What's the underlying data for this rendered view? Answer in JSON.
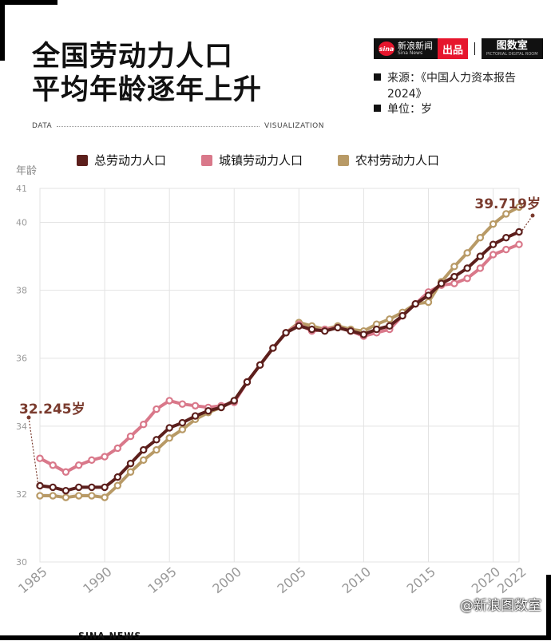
{
  "header": {
    "title_line1": "全国劳动力人口",
    "title_line2": "平均年龄逐年上升",
    "brand_name": "新浪新闻",
    "brand_sub": "Sina News",
    "brand_badge": "出品",
    "brand_tsx": "图数室",
    "brand_tsx_sub": "PICTORIAL DIGITAL ROOM",
    "sina_logo_text": "sina",
    "source_line1": "来源：《中国人力资本报告",
    "source_line2": "2024》",
    "unit": "单位：岁",
    "data_label": "DATA",
    "viz_label": "VISUALIZATION"
  },
  "footer": {
    "left": "SINA NEWS",
    "watermark": "@新浪图数室"
  },
  "colors": {
    "total": "#5c1f1c",
    "urban": "#d9788a",
    "rural": "#b89a66",
    "callout": "#7a3b2e",
    "grid": "#e3e3e3"
  },
  "chart_data": {
    "type": "line",
    "ylabel": "年龄",
    "ylim": [
      30,
      41
    ],
    "yticks": [
      30,
      32,
      34,
      36,
      38,
      40,
      41
    ],
    "x": [
      1985,
      1986,
      1987,
      1988,
      1989,
      1990,
      1991,
      1992,
      1993,
      1994,
      1995,
      1996,
      1997,
      1998,
      1999,
      2000,
      2001,
      2002,
      2003,
      2004,
      2005,
      2006,
      2007,
      2008,
      2009,
      2010,
      2011,
      2012,
      2013,
      2014,
      2015,
      2016,
      2017,
      2018,
      2019,
      2020,
      2021,
      2022
    ],
    "xticks": [
      1985,
      1990,
      1995,
      2000,
      2005,
      2010,
      2015,
      2020,
      2022
    ],
    "series": [
      {
        "name": "总劳动力人口",
        "key": "total",
        "values": [
          32.245,
          32.2,
          32.1,
          32.2,
          32.2,
          32.2,
          32.5,
          32.9,
          33.3,
          33.6,
          33.95,
          34.1,
          34.3,
          34.45,
          34.55,
          34.75,
          35.3,
          35.8,
          36.3,
          36.75,
          36.95,
          36.85,
          36.8,
          36.9,
          36.8,
          36.7,
          36.85,
          36.95,
          37.25,
          37.6,
          37.85,
          38.2,
          38.4,
          38.65,
          39.0,
          39.35,
          39.55,
          39.719
        ]
      },
      {
        "name": "城镇劳动力人口",
        "key": "urban",
        "values": [
          33.05,
          32.85,
          32.65,
          32.85,
          33.0,
          33.1,
          33.35,
          33.7,
          34.05,
          34.5,
          34.75,
          34.65,
          34.6,
          34.55,
          34.6,
          34.7,
          35.3,
          35.8,
          36.3,
          36.75,
          37.0,
          36.8,
          36.85,
          36.9,
          36.8,
          36.65,
          36.75,
          36.85,
          37.25,
          37.6,
          37.95,
          38.15,
          38.2,
          38.35,
          38.65,
          39.05,
          39.2,
          39.35
        ]
      },
      {
        "name": "农村劳动力人口",
        "key": "rural",
        "values": [
          31.95,
          31.95,
          31.9,
          31.95,
          31.95,
          31.9,
          32.25,
          32.65,
          33.0,
          33.3,
          33.65,
          33.9,
          34.2,
          34.4,
          34.55,
          34.75,
          35.3,
          35.8,
          36.3,
          36.75,
          37.05,
          36.95,
          36.85,
          36.95,
          36.85,
          36.8,
          37.0,
          37.15,
          37.35,
          37.6,
          37.65,
          38.25,
          38.7,
          39.1,
          39.55,
          39.95,
          40.25,
          40.45
        ]
      }
    ],
    "annotations": [
      {
        "x": 1985,
        "value": 32.245,
        "text": "32.245岁"
      },
      {
        "x": 2022,
        "value": 39.719,
        "text": "39.719岁"
      }
    ]
  }
}
